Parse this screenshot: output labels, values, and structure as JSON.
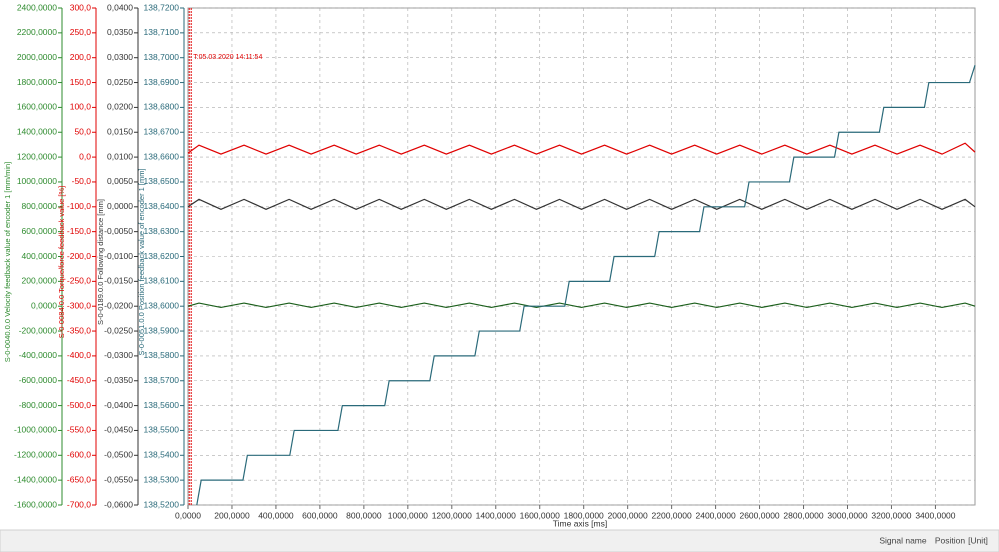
{
  "chart_data": {
    "type": "line",
    "x_label": "Time axis [ms]",
    "xlim": [
      0,
      3580
    ],
    "xticks": [
      {
        "value": 0,
        "label": "0,0000"
      },
      {
        "value": 200,
        "label": "200,0000"
      },
      {
        "value": 400,
        "label": "400,0000"
      },
      {
        "value": 600,
        "label": "600,0000"
      },
      {
        "value": 800,
        "label": "800,0000"
      },
      {
        "value": 1000,
        "label": "1000,0000"
      },
      {
        "value": 1200,
        "label": "1200,0000"
      },
      {
        "value": 1400,
        "label": "1400,0000"
      },
      {
        "value": 1600,
        "label": "1600,0000"
      },
      {
        "value": 1800,
        "label": "1800,0000"
      },
      {
        "value": 2000,
        "label": "2000,0000"
      },
      {
        "value": 2200,
        "label": "2200,0000"
      },
      {
        "value": 2400,
        "label": "2400,0000"
      },
      {
        "value": 2600,
        "label": "2600,0000"
      },
      {
        "value": 2800,
        "label": "2800,0000"
      },
      {
        "value": 3000,
        "label": "3000,0000"
      },
      {
        "value": 3200,
        "label": "3200,0000"
      },
      {
        "value": 3400,
        "label": "3400,0000"
      }
    ],
    "grid": true,
    "cursor": {
      "x": 10,
      "label": "T:05.03.2020 14:11:54",
      "color": "#e00000"
    },
    "axes": [
      {
        "label": "S-0-0040.0.0 Velocity feedback value of encoder 1 [mm/min]",
        "color": "#2e8b2e",
        "lim": [
          -1600,
          2400
        ],
        "ticks": [
          {
            "value": 2400,
            "label": "2400,0000"
          },
          {
            "value": 2200,
            "label": "2200,0000"
          },
          {
            "value": 2000,
            "label": "2000,0000"
          },
          {
            "value": 1800,
            "label": "1800,0000"
          },
          {
            "value": 1600,
            "label": "1600,0000"
          },
          {
            "value": 1400,
            "label": "1400,0000"
          },
          {
            "value": 1200,
            "label": "1200,0000"
          },
          {
            "value": 1000,
            "label": "1000,0000"
          },
          {
            "value": 800,
            "label": "800,0000"
          },
          {
            "value": 600,
            "label": "600,0000"
          },
          {
            "value": 400,
            "label": "400,0000"
          },
          {
            "value": 200,
            "label": "200,0000"
          },
          {
            "value": 0,
            "label": "0,0000"
          },
          {
            "value": -200,
            "label": "-200,0000"
          },
          {
            "value": -400,
            "label": "-400,0000"
          },
          {
            "value": -600,
            "label": "-600,0000"
          },
          {
            "value": -800,
            "label": "-800,0000"
          },
          {
            "value": -1000,
            "label": "-1000,0000"
          },
          {
            "value": -1200,
            "label": "-1200,0000"
          },
          {
            "value": -1400,
            "label": "-1400,0000"
          },
          {
            "value": -1600,
            "label": "-1600,0000"
          }
        ]
      },
      {
        "label": "S-0-0084.0.0 Torque/force feedback value [%]",
        "color": "#e00000",
        "lim": [
          -700,
          300
        ],
        "ticks": [
          {
            "value": 300,
            "label": "300,0"
          },
          {
            "value": 250,
            "label": "250,0"
          },
          {
            "value": 200,
            "label": "200,0"
          },
          {
            "value": 150,
            "label": "150,0"
          },
          {
            "value": 100,
            "label": "100,0"
          },
          {
            "value": 50,
            "label": "50,0"
          },
          {
            "value": 0,
            "label": "0,0"
          },
          {
            "value": -50,
            "label": "-50,0"
          },
          {
            "value": -100,
            "label": "-100,0"
          },
          {
            "value": -150,
            "label": "-150,0"
          },
          {
            "value": -200,
            "label": "-200,0"
          },
          {
            "value": -250,
            "label": "-250,0"
          },
          {
            "value": -300,
            "label": "-300,0"
          },
          {
            "value": -350,
            "label": "-350,0"
          },
          {
            "value": -400,
            "label": "-400,0"
          },
          {
            "value": -450,
            "label": "-450,0"
          },
          {
            "value": -500,
            "label": "-500,0"
          },
          {
            "value": -550,
            "label": "-550,0"
          },
          {
            "value": -600,
            "label": "-600,0"
          },
          {
            "value": -650,
            "label": "-650,0"
          },
          {
            "value": -700,
            "label": "-700,0"
          }
        ]
      },
      {
        "label": "S-0-0189.0.0 Following distance [mm]",
        "color": "#333333",
        "lim": [
          -0.06,
          0.04
        ],
        "ticks": [
          {
            "value": 0.04,
            "label": "0,0400"
          },
          {
            "value": 0.035,
            "label": "0,0350"
          },
          {
            "value": 0.03,
            "label": "0,0300"
          },
          {
            "value": 0.025,
            "label": "0,0250"
          },
          {
            "value": 0.02,
            "label": "0,0200"
          },
          {
            "value": 0.015,
            "label": "0,0150"
          },
          {
            "value": 0.01,
            "label": "0,0100"
          },
          {
            "value": 0.005,
            "label": "0,0050"
          },
          {
            "value": 0,
            "label": "0,0000"
          },
          {
            "value": -0.005,
            "label": "-0,0050"
          },
          {
            "value": -0.01,
            "label": "-0,0100"
          },
          {
            "value": -0.015,
            "label": "-0,0150"
          },
          {
            "value": -0.02,
            "label": "-0,0200"
          },
          {
            "value": -0.025,
            "label": "-0,0250"
          },
          {
            "value": -0.03,
            "label": "-0,0300"
          },
          {
            "value": -0.035,
            "label": "-0,0350"
          },
          {
            "value": -0.04,
            "label": "-0,0400"
          },
          {
            "value": -0.045,
            "label": "-0,0450"
          },
          {
            "value": -0.05,
            "label": "-0,0500"
          },
          {
            "value": -0.055,
            "label": "-0,0550"
          },
          {
            "value": -0.06,
            "label": "-0,0600"
          }
        ]
      },
      {
        "label": "S-0-0051.0.0 Position feedback value of encoder 1 [mm]",
        "color": "#2a6a7a",
        "lim": [
          138.52,
          138.72
        ],
        "ticks": [
          {
            "value": 138.72,
            "label": "138,7200"
          },
          {
            "value": 138.71,
            "label": "138,7100"
          },
          {
            "value": 138.7,
            "label": "138,7000"
          },
          {
            "value": 138.69,
            "label": "138,6900"
          },
          {
            "value": 138.68,
            "label": "138,6800"
          },
          {
            "value": 138.67,
            "label": "138,6700"
          },
          {
            "value": 138.66,
            "label": "138,6600"
          },
          {
            "value": 138.65,
            "label": "138,6500"
          },
          {
            "value": 138.64,
            "label": "138,6400"
          },
          {
            "value": 138.63,
            "label": "138,6300"
          },
          {
            "value": 138.62,
            "label": "138,6200"
          },
          {
            "value": 138.61,
            "label": "138,6100"
          },
          {
            "value": 138.6,
            "label": "138,6000"
          },
          {
            "value": 138.59,
            "label": "138,5900"
          },
          {
            "value": 138.58,
            "label": "138,5800"
          },
          {
            "value": 138.57,
            "label": "138,5700"
          },
          {
            "value": 138.56,
            "label": "138,5600"
          },
          {
            "value": 138.55,
            "label": "138,5500"
          },
          {
            "value": 138.54,
            "label": "138,5400"
          },
          {
            "value": 138.53,
            "label": "138,5300"
          },
          {
            "value": 138.52,
            "label": "138,5200"
          }
        ]
      }
    ],
    "x": [
      0,
      50,
      150,
      255,
      355,
      460,
      560,
      665,
      765,
      870,
      970,
      1075,
      1175,
      1280,
      1380,
      1485,
      1585,
      1690,
      1790,
      1895,
      1995,
      2100,
      2200,
      2305,
      2405,
      2510,
      2610,
      2715,
      2815,
      2920,
      3020,
      3125,
      3225,
      3330,
      3430,
      3535,
      3580
    ],
    "series": [
      {
        "axis": 0,
        "color": "#1a5e1a",
        "values": [
          0,
          25,
          -10,
          25,
          -10,
          25,
          -10,
          25,
          -10,
          25,
          -10,
          25,
          -10,
          25,
          -10,
          25,
          -10,
          25,
          -10,
          25,
          -10,
          25,
          -10,
          25,
          -10,
          25,
          -10,
          25,
          -10,
          25,
          -10,
          25,
          -10,
          25,
          -10,
          25,
          0
        ]
      },
      {
        "axis": 1,
        "color": "#e00000",
        "values": [
          8,
          24,
          6,
          24,
          6,
          24,
          6,
          24,
          6,
          24,
          6,
          24,
          6,
          24,
          6,
          24,
          6,
          24,
          6,
          24,
          6,
          24,
          6,
          24,
          6,
          24,
          6,
          24,
          6,
          24,
          6,
          24,
          6,
          24,
          6,
          28,
          10
        ]
      },
      {
        "axis": 2,
        "color": "#333333",
        "values": [
          0,
          0.0015,
          -0.0005,
          0.0015,
          -0.0005,
          0.0015,
          -0.0005,
          0.0015,
          -0.0005,
          0.0015,
          -0.0005,
          0.0015,
          -0.0005,
          0.0015,
          -0.0005,
          0.0015,
          -0.0005,
          0.0015,
          -0.0005,
          0.0015,
          -0.0005,
          0.0015,
          -0.0005,
          0.0015,
          -0.0005,
          0.0015,
          -0.0005,
          0.0015,
          -0.0005,
          0.0015,
          -0.0005,
          0.0015,
          -0.0005,
          0.0015,
          -0.0005,
          0.0015,
          0
        ]
      },
      {
        "axis": 3,
        "color": "#2a6a7a",
        "x": [
          40,
          60,
          250,
          270,
          463,
          483,
          682,
          702,
          895,
          915,
          1100,
          1120,
          1305,
          1325,
          1509,
          1529,
          1714,
          1734,
          1918,
          1938,
          2123,
          2143,
          2327,
          2347,
          2532,
          2552,
          2736,
          2756,
          2941,
          2961,
          3145,
          3165,
          3350,
          3370,
          3555,
          3580
        ],
        "values": [
          138.52,
          138.53,
          138.53,
          138.54,
          138.54,
          138.55,
          138.55,
          138.56,
          138.56,
          138.57,
          138.57,
          138.58,
          138.58,
          138.59,
          138.59,
          138.6,
          138.6,
          138.61,
          138.61,
          138.62,
          138.62,
          138.63,
          138.63,
          138.64,
          138.64,
          138.65,
          138.65,
          138.66,
          138.66,
          138.67,
          138.67,
          138.68,
          138.68,
          138.69,
          138.69,
          138.697
        ]
      }
    ]
  },
  "status_bar": {
    "signal_name": "Signal name",
    "position": "Position",
    "unit": "[Unit]"
  }
}
